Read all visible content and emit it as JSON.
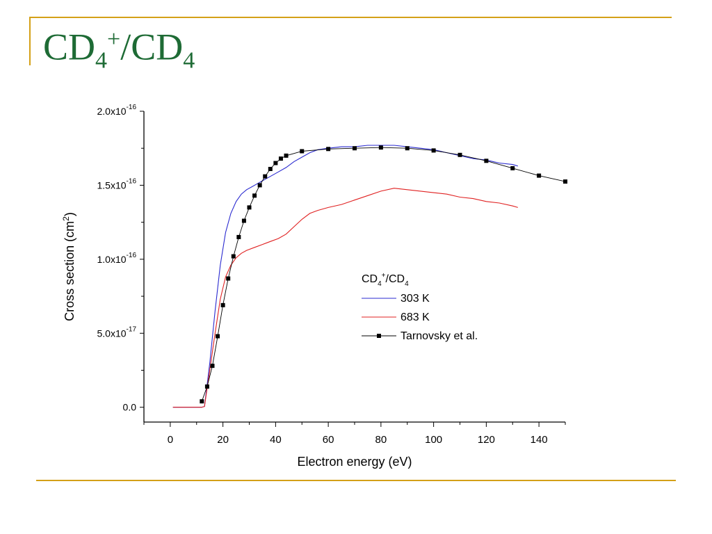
{
  "slide": {
    "title_base": "CD",
    "title_sub": "4",
    "title_sup": "+",
    "title_mid": "/CD",
    "title_sub2": "4",
    "title_color": "#1e6b35",
    "rule_color": "#d4a017"
  },
  "chart_data": {
    "type": "line",
    "title": "",
    "xlabel": "Electron energy (eV)",
    "ylabel": "Cross section (cm2)",
    "xlim": [
      -10,
      150
    ],
    "ylim": [
      -1e-17,
      2e-16
    ],
    "x_ticks": [
      {
        "value": 0,
        "label": "0"
      },
      {
        "value": 20,
        "label": "20"
      },
      {
        "value": 40,
        "label": "40"
      },
      {
        "value": 60,
        "label": "60"
      },
      {
        "value": 80,
        "label": "80"
      },
      {
        "value": 100,
        "label": "100"
      },
      {
        "value": 120,
        "label": "120"
      },
      {
        "value": 140,
        "label": "140"
      }
    ],
    "y_ticks": [
      {
        "value": 0,
        "mantissa": "0.0",
        "exp": ""
      },
      {
        "value": 5e-17,
        "mantissa": "5.0x10",
        "exp": "-17"
      },
      {
        "value": 1e-16,
        "mantissa": "1.0x10",
        "exp": "-16"
      },
      {
        "value": 1.5e-16,
        "mantissa": "1.5x10",
        "exp": "-16"
      },
      {
        "value": 2e-16,
        "mantissa": "2.0x10",
        "exp": "-16"
      }
    ],
    "grid": false,
    "legend_position": "center-right",
    "legend_title": "CD4+/CD4",
    "series": [
      {
        "name": "303 K",
        "color": "#2a2ad0",
        "style": "line",
        "x": [
          1,
          12,
          13,
          15,
          17,
          19,
          21,
          23,
          25,
          27,
          29,
          31,
          33,
          35,
          38,
          41,
          44,
          47,
          50,
          53,
          56,
          60,
          65,
          70,
          75,
          80,
          85,
          90,
          95,
          100,
          105,
          110,
          115,
          120,
          125,
          130,
          132
        ],
        "y": [
          0,
          0,
          5e-19,
          3e-17,
          6.5e-17,
          9.6e-17,
          1.18e-16,
          1.31e-16,
          1.39e-16,
          1.44e-16,
          1.47e-16,
          1.49e-16,
          1.51e-16,
          1.53e-16,
          1.56e-16,
          1.59e-16,
          1.62e-16,
          1.66e-16,
          1.69e-16,
          1.72e-16,
          1.74e-16,
          1.75e-16,
          1.76e-16,
          1.76e-16,
          1.77e-16,
          1.77e-16,
          1.77e-16,
          1.76e-16,
          1.75e-16,
          1.74e-16,
          1.72e-16,
          1.7e-16,
          1.68e-16,
          1.67e-16,
          1.65e-16,
          1.64e-16,
          1.63e-16
        ]
      },
      {
        "name": "683 K",
        "color": "#e02020",
        "style": "line",
        "x": [
          1,
          12,
          13,
          15,
          17,
          19,
          21,
          23,
          25,
          27,
          29,
          32,
          35,
          38,
          41,
          44,
          47,
          50,
          53,
          56,
          60,
          65,
          70,
          75,
          80,
          85,
          90,
          95,
          100,
          105,
          110,
          115,
          120,
          125,
          130,
          132
        ],
        "y": [
          0,
          0,
          5e-19,
          2.5e-17,
          5e-17,
          7.3e-17,
          8.8e-17,
          9.6e-17,
          1.01e-16,
          1.04e-16,
          1.06e-16,
          1.08e-16,
          1.1e-16,
          1.12e-16,
          1.14e-16,
          1.17e-16,
          1.22e-16,
          1.27e-16,
          1.31e-16,
          1.33e-16,
          1.35e-16,
          1.37e-16,
          1.4e-16,
          1.43e-16,
          1.46e-16,
          1.48e-16,
          1.47e-16,
          1.46e-16,
          1.45e-16,
          1.44e-16,
          1.42e-16,
          1.41e-16,
          1.39e-16,
          1.38e-16,
          1.36e-16,
          1.35e-16
        ]
      },
      {
        "name": "Tarnovsky et al.",
        "color": "#000000",
        "style": "line-marker",
        "x": [
          12,
          14,
          16,
          18,
          20,
          22,
          24,
          26,
          28,
          30,
          32,
          34,
          36,
          38,
          40,
          42,
          44,
          50,
          60,
          70,
          80,
          90,
          100,
          110,
          120,
          130,
          140,
          150
        ],
        "y": [
          4e-18,
          1.4e-17,
          2.8e-17,
          4.8e-17,
          6.9e-17,
          8.7e-17,
          1.02e-16,
          1.15e-16,
          1.26e-16,
          1.35e-16,
          1.43e-16,
          1.5e-16,
          1.56e-16,
          1.61e-16,
          1.65e-16,
          1.68e-16,
          1.7e-16,
          1.73e-16,
          1.745e-16,
          1.75e-16,
          1.755e-16,
          1.75e-16,
          1.735e-16,
          1.705e-16,
          1.665e-16,
          1.615e-16,
          1.565e-16,
          1.525e-16
        ]
      }
    ]
  }
}
